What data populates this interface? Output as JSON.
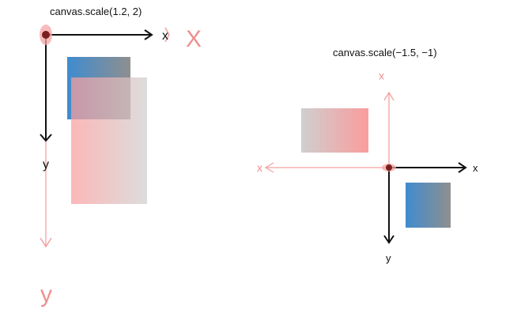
{
  "diagrams": {
    "left": {
      "caption": "canvas.scale(1.2, 2)",
      "original_axes": {
        "x_label": "x",
        "y_label": "y"
      },
      "scaled_axes": {
        "x_label": "X",
        "y_label": "y"
      }
    },
    "right": {
      "caption": "canvas.scale(−1.5, −1)",
      "original_axes": {
        "x_label": "x",
        "y_label": "y"
      },
      "scaled_axes": {
        "x_label": "x",
        "y_label": "x"
      }
    }
  },
  "colors": {
    "dark_axis": "#111111",
    "pink_axis": "#f4a0a0",
    "origin_dark": "#7a1f1f",
    "origin_glow": "#f4a6a6",
    "blue_grad_start": "#3f8ccf",
    "gray_grad_end": "#8f8f8f",
    "pink_grad_start": "#fb9c9c",
    "light_gray_grad_end": "#cfcfcf"
  }
}
